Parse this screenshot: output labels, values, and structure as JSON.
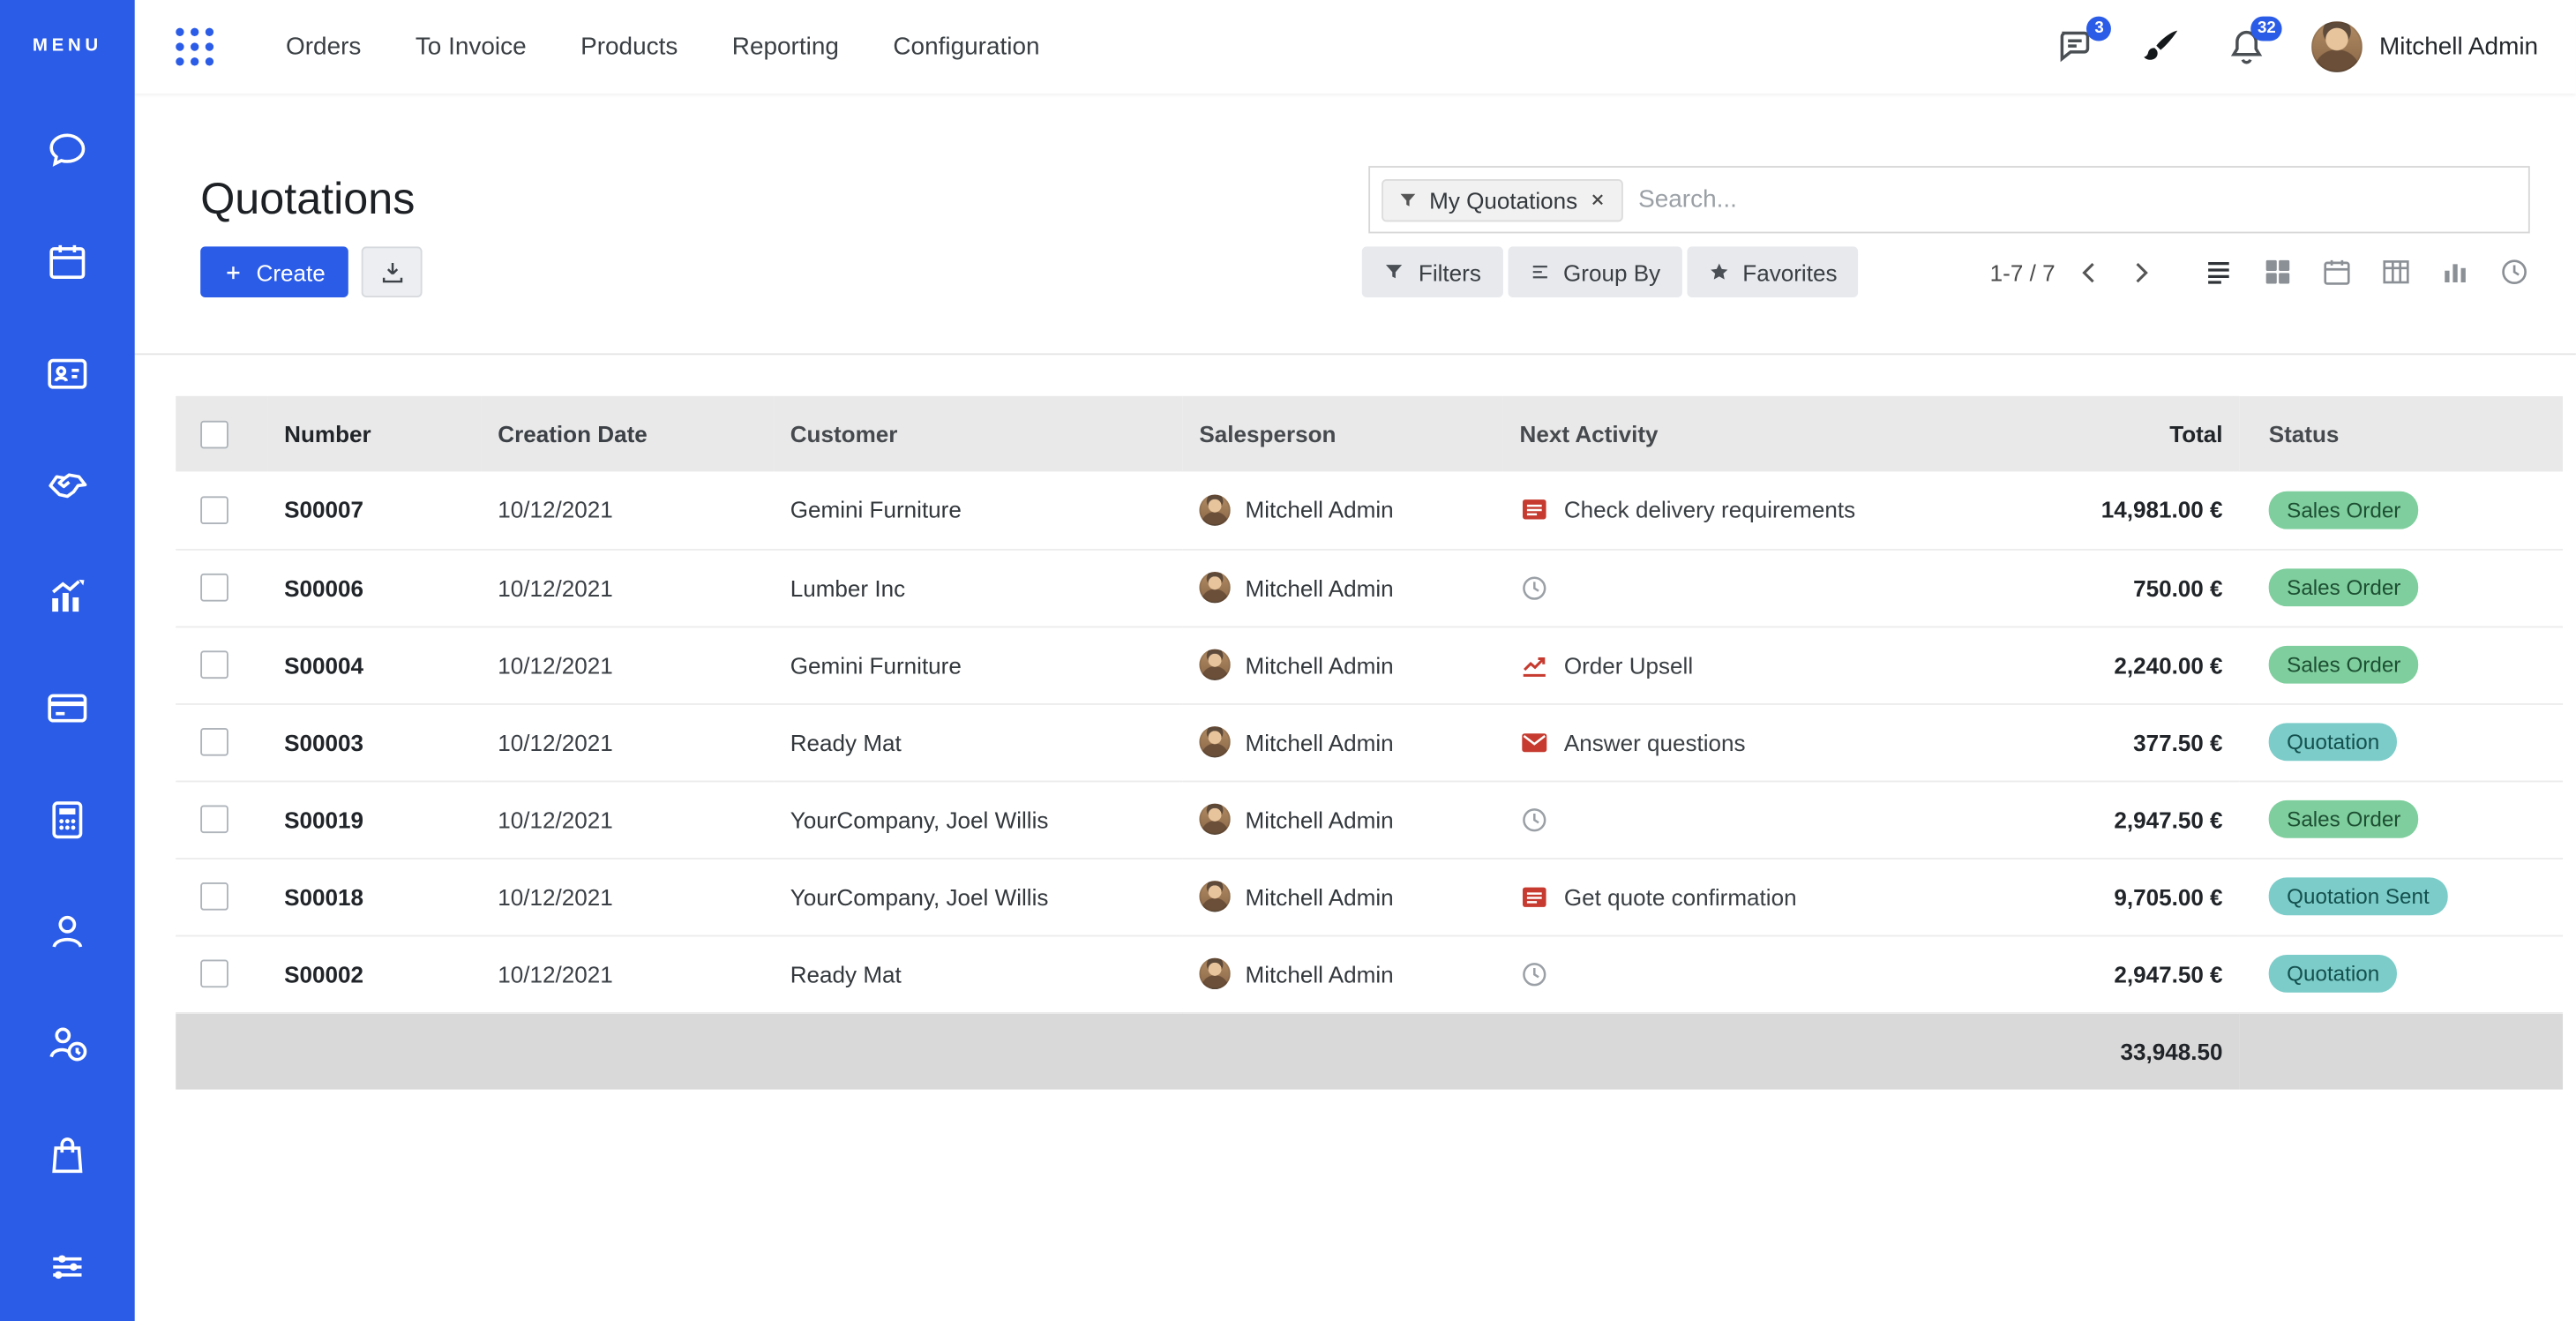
{
  "brand": {
    "primary_blue": "#2b5ce7",
    "activity_red": "#c63a2f",
    "badge_green_bg": "#7fce9d",
    "badge_teal_bg": "#7cccc9"
  },
  "sidebar": {
    "menu_label": "MENU",
    "items": [
      {
        "name": "discuss",
        "icon": "chat-bubble"
      },
      {
        "name": "calendar",
        "icon": "calendar"
      },
      {
        "name": "contacts",
        "icon": "address-card"
      },
      {
        "name": "crm",
        "icon": "handshake"
      },
      {
        "name": "sales",
        "icon": "chart-growth"
      },
      {
        "name": "point-of-sale",
        "icon": "credit-card"
      },
      {
        "name": "invoicing",
        "icon": "calculator"
      },
      {
        "name": "employees",
        "icon": "user"
      },
      {
        "name": "attendances",
        "icon": "user-clock"
      },
      {
        "name": "purchase",
        "icon": "shopping-bag"
      },
      {
        "name": "settings",
        "icon": "sliders"
      }
    ]
  },
  "topbar": {
    "menu_items": [
      "Orders",
      "To Invoice",
      "Products",
      "Reporting",
      "Configuration"
    ],
    "messages_badge": "3",
    "notifications_badge": "32",
    "user_name": "Mitchell Admin"
  },
  "control_panel": {
    "title": "Quotations",
    "create_label": "Create",
    "search_facet": "My Quotations",
    "search_placeholder": "Search...",
    "filters_label": "Filters",
    "group_by_label": "Group By",
    "favorites_label": "Favorites",
    "pager": "1-7 / 7"
  },
  "table": {
    "columns": [
      "Number",
      "Creation Date",
      "Customer",
      "Salesperson",
      "Next Activity",
      "Total",
      "Status"
    ],
    "rows": [
      {
        "number": "S00007",
        "date": "10/12/2021",
        "customer": "Gemini Furniture",
        "salesperson": "Mitchell Admin",
        "activity_icon": "tasks",
        "activity": "Check delivery requirements",
        "total": "14,981.00 €",
        "status": "Sales Order",
        "status_type": "success"
      },
      {
        "number": "S00006",
        "date": "10/12/2021",
        "customer": "Lumber Inc",
        "salesperson": "Mitchell Admin",
        "activity_icon": "clock",
        "activity": "",
        "total": "750.00 €",
        "status": "Sales Order",
        "status_type": "success"
      },
      {
        "number": "S00004",
        "date": "10/12/2021",
        "customer": "Gemini Furniture",
        "salesperson": "Mitchell Admin",
        "activity_icon": "chart",
        "activity": "Order Upsell",
        "total": "2,240.00 €",
        "status": "Sales Order",
        "status_type": "success"
      },
      {
        "number": "S00003",
        "date": "10/12/2021",
        "customer": "Ready Mat",
        "salesperson": "Mitchell Admin",
        "activity_icon": "envelope",
        "activity": "Answer questions",
        "total": "377.50 €",
        "status": "Quotation",
        "status_type": "info"
      },
      {
        "number": "S00019",
        "date": "10/12/2021",
        "customer": "YourCompany, Joel Willis",
        "salesperson": "Mitchell Admin",
        "activity_icon": "clock",
        "activity": "",
        "total": "2,947.50 €",
        "status": "Sales Order",
        "status_type": "success"
      },
      {
        "number": "S00018",
        "date": "10/12/2021",
        "customer": "YourCompany, Joel Willis",
        "salesperson": "Mitchell Admin",
        "activity_icon": "tasks",
        "activity": "Get quote confirmation",
        "total": "9,705.00 €",
        "status": "Quotation Sent",
        "status_type": "info"
      },
      {
        "number": "S00002",
        "date": "10/12/2021",
        "customer": "Ready Mat",
        "salesperson": "Mitchell Admin",
        "activity_icon": "clock",
        "activity": "",
        "total": "2,947.50 €",
        "status": "Quotation",
        "status_type": "info"
      }
    ],
    "footer_total": "33,948.50"
  }
}
